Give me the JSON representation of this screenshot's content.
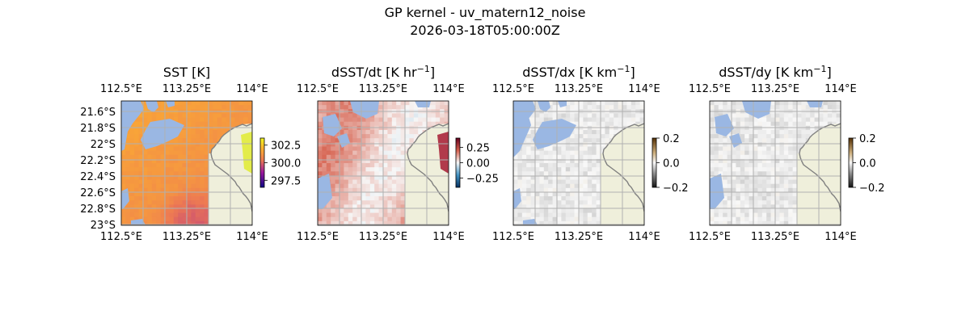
{
  "figure": {
    "title_line1": "GP kernel - uv_matern12_noise",
    "title_line2": "2026-03-18T05:00:00Z"
  },
  "colors": {
    "land": "#efefdb",
    "ocean_mask": "#9ab7e3",
    "coastline": "#7f7f7f",
    "gridline": "#b0b0b0"
  },
  "chart_data": [
    {
      "type": "heatmap",
      "title": "SST [K]",
      "colormap": "plasma-like (purple→orange→yellow)",
      "x_ticks": [
        "112.5°E",
        "113.25°E",
        "114°E"
      ],
      "x_ticks_top": [
        "112.5°E",
        "113.25°E",
        "114°E"
      ],
      "y_ticks": [
        "21.6°S",
        "21.8°S",
        "22°S",
        "22.2°S",
        "22.4°S",
        "22.6°S",
        "22.8°S",
        "23°S"
      ],
      "xlim": [
        112.5,
        114.0
      ],
      "ylim": [
        -23.0,
        -21.5
      ],
      "colorbar": {
        "ticks": [
          "302.5",
          "300.0",
          "297.5"
        ],
        "range": [
          296.5,
          303.5
        ]
      },
      "typical_value": 301.0,
      "grid": true
    },
    {
      "type": "heatmap",
      "title": "dSST/dt [K hr",
      "title_sup": "−1",
      "title_end": "]",
      "colormap": "diverging blue-white-red",
      "x_ticks": [
        "112.5°E",
        "113.25°E",
        "114°E"
      ],
      "x_ticks_top": [
        "112.5°E",
        "113.25°E",
        "114°E"
      ],
      "xlim": [
        112.5,
        114.0
      ],
      "ylim": [
        -23.0,
        -21.5
      ],
      "colorbar": {
        "ticks": [
          "0.25",
          "0.00",
          "−0.25"
        ],
        "range": [
          -0.4,
          0.4
        ]
      },
      "grid": true
    },
    {
      "type": "heatmap",
      "title": "dSST/dx [K km",
      "title_sup": "−1",
      "title_end": "]",
      "colormap": "diverging black-white-brown",
      "x_ticks": [
        "112.5°E",
        "113.25°E",
        "114°E"
      ],
      "x_ticks_top": [
        "112.5°E",
        "113.25°E",
        "114°E"
      ],
      "xlim": [
        112.5,
        114.0
      ],
      "ylim": [
        -23.0,
        -21.5
      ],
      "colorbar": {
        "ticks": [
          "0.2",
          "0.0",
          "−0.2"
        ],
        "range": [
          -0.2,
          0.2
        ]
      },
      "grid": true
    },
    {
      "type": "heatmap",
      "title": "dSST/dy [K km",
      "title_sup": "−1",
      "title_end": "]",
      "colormap": "diverging black-white-brown",
      "x_ticks": [
        "112.5°E",
        "113.25°E",
        "114°E"
      ],
      "x_ticks_top": [
        "112.5°E",
        "113.25°E",
        "114°E"
      ],
      "xlim": [
        112.5,
        114.0
      ],
      "ylim": [
        -23.0,
        -21.5
      ],
      "colorbar": {
        "ticks": [
          "0.2",
          "0.0",
          "−0.2"
        ],
        "range": [
          -0.2,
          0.2
        ]
      },
      "grid": true
    }
  ]
}
